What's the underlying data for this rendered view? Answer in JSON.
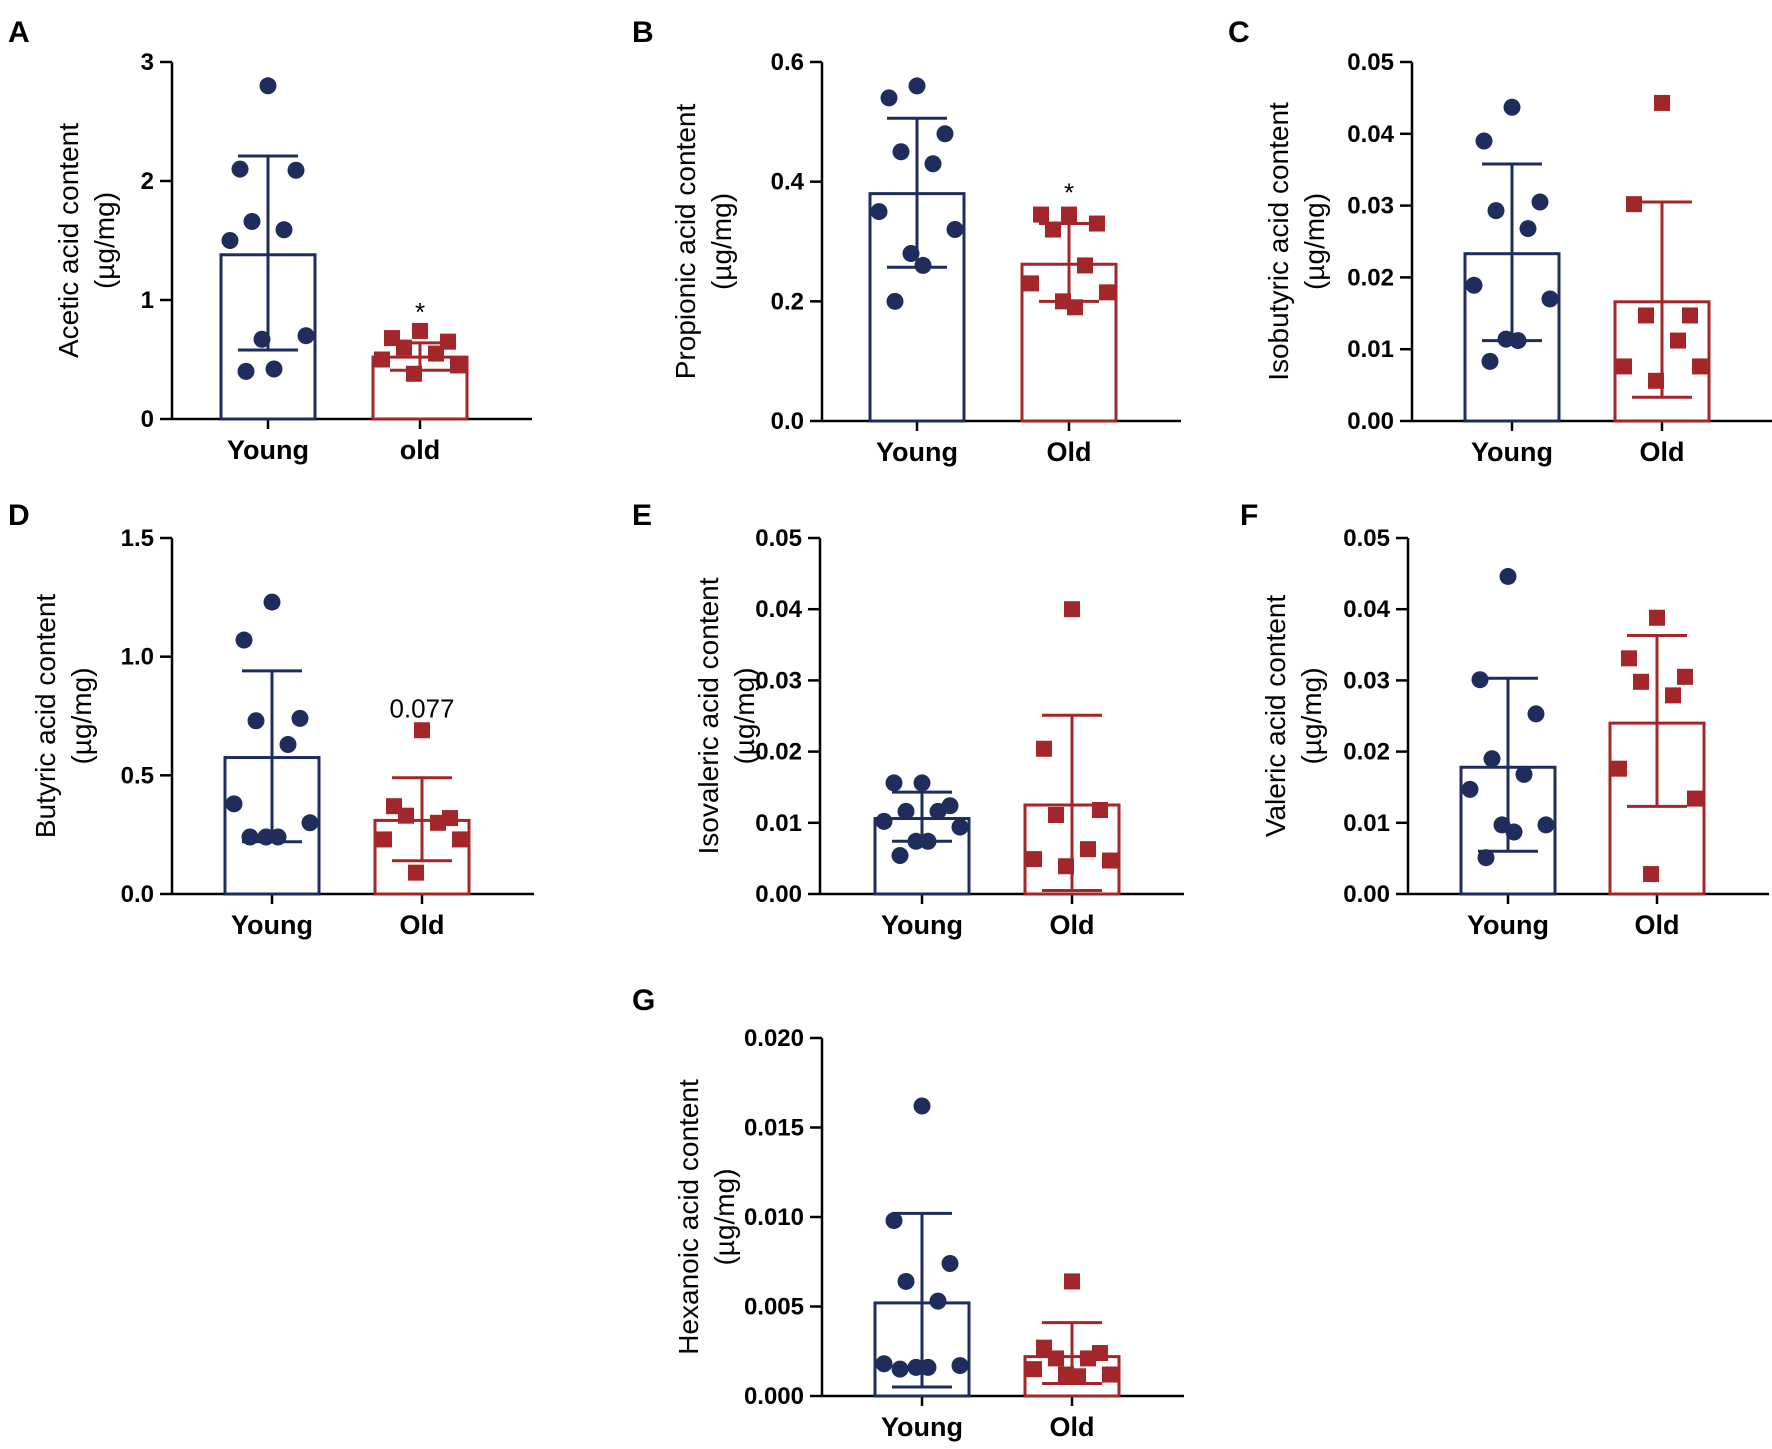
{
  "colors": {
    "young": "#1f2d5c",
    "old": "#a3262a",
    "axis": "#000000"
  },
  "chart_data": [
    {
      "panel": "A",
      "type": "bar",
      "ylabel": [
        "Acetic acid content",
        "(µg/mg)"
      ],
      "ylim": [
        0,
        3
      ],
      "ticks": [
        0,
        1,
        2,
        3
      ],
      "tick_labels": [
        "0",
        "1",
        "2",
        "3"
      ],
      "annotation": "*",
      "series": [
        {
          "name": "Young",
          "label": "Young",
          "mean": 1.38,
          "sd_low": 0.58,
          "sd_high": 2.21,
          "points": [
            2.8,
            2.1,
            2.09,
            1.66,
            1.59,
            1.5,
            0.7,
            0.67,
            0.42,
            0.4
          ]
        },
        {
          "name": "Old",
          "label": "old",
          "mean": 0.52,
          "sd_low": 0.41,
          "sd_high": 0.64,
          "points": [
            0.74,
            0.68,
            0.65,
            0.6,
            0.55,
            0.5,
            0.45,
            0.38
          ]
        }
      ]
    },
    {
      "panel": "B",
      "type": "bar",
      "ylabel": [
        "Propionic acid content",
        "(µg/mg)"
      ],
      "ylim": [
        0,
        0.6
      ],
      "ticks": [
        0,
        0.2,
        0.4,
        0.6
      ],
      "tick_labels": [
        "0.0",
        "0.2",
        "0.4",
        "0.6"
      ],
      "annotation": "*",
      "series": [
        {
          "name": "Young",
          "label": "Young",
          "mean": 0.38,
          "sd_low": 0.257,
          "sd_high": 0.506,
          "points": [
            0.56,
            0.54,
            0.48,
            0.45,
            0.43,
            0.35,
            0.32,
            0.28,
            0.26,
            0.2
          ]
        },
        {
          "name": "Old",
          "label": "Old",
          "mean": 0.262,
          "sd_low": 0.2,
          "sd_high": 0.33,
          "points": [
            0.345,
            0.345,
            0.33,
            0.32,
            0.26,
            0.23,
            0.215,
            0.2,
            0.19
          ]
        }
      ]
    },
    {
      "panel": "C",
      "type": "bar",
      "ylabel": [
        "Isobutyric acid content",
        "(µg/mg)"
      ],
      "ylim": [
        0,
        0.05
      ],
      "ticks": [
        0,
        0.01,
        0.02,
        0.03,
        0.04,
        0.05
      ],
      "tick_labels": [
        "0.00",
        "0.01",
        "0.02",
        "0.03",
        "0.04",
        "0.05"
      ],
      "annotation": "",
      "series": [
        {
          "name": "Young",
          "label": "Young",
          "mean": 0.0233,
          "sd_low": 0.0112,
          "sd_high": 0.0358,
          "points": [
            0.0437,
            0.039,
            0.0305,
            0.0293,
            0.0268,
            0.0189,
            0.017,
            0.0114,
            0.0112,
            0.0083
          ]
        },
        {
          "name": "Old",
          "label": "Old",
          "mean": 0.0166,
          "sd_low": 0.0033,
          "sd_high": 0.0305,
          "points": [
            0.0443,
            0.0302,
            0.0147,
            0.0147,
            0.0112,
            0.0076,
            0.0076,
            0.0056
          ]
        }
      ]
    },
    {
      "panel": "D",
      "type": "bar",
      "ylabel": [
        "Butyric acid content",
        "(µg/mg)"
      ],
      "ylim": [
        0,
        1.5
      ],
      "ticks": [
        0,
        0.5,
        1.0,
        1.5
      ],
      "tick_labels": [
        "0.0",
        "0.5",
        "1.0",
        "1.5"
      ],
      "annotation": "0.077",
      "series": [
        {
          "name": "Young",
          "label": "Young",
          "mean": 0.575,
          "sd_low": 0.22,
          "sd_high": 0.94,
          "points": [
            1.23,
            1.07,
            0.74,
            0.73,
            0.63,
            0.38,
            0.3,
            0.24,
            0.24,
            0.24
          ]
        },
        {
          "name": "Old",
          "label": "Old",
          "mean": 0.31,
          "sd_low": 0.14,
          "sd_high": 0.49,
          "points": [
            0.69,
            0.37,
            0.32,
            0.33,
            0.3,
            0.23,
            0.23,
            0.09
          ]
        }
      ]
    },
    {
      "panel": "E",
      "type": "bar",
      "ylabel": [
        "Isovaleric acid content",
        "(µg/mg)"
      ],
      "ylim": [
        0,
        0.05
      ],
      "ticks": [
        0,
        0.01,
        0.02,
        0.03,
        0.04,
        0.05
      ],
      "tick_labels": [
        "0.00",
        "0.01",
        "0.02",
        "0.03",
        "0.04",
        "0.05"
      ],
      "annotation": "",
      "series": [
        {
          "name": "Young",
          "label": "Young",
          "mean": 0.0106,
          "sd_low": 0.0074,
          "sd_high": 0.0143,
          "points": [
            0.0156,
            0.0156,
            0.0124,
            0.0116,
            0.0116,
            0.0102,
            0.0094,
            0.0074,
            0.0074,
            0.0054
          ]
        },
        {
          "name": "Old",
          "label": "Old",
          "mean": 0.0125,
          "sd_low": 0.0005,
          "sd_high": 0.0251,
          "points": [
            0.04,
            0.0204,
            0.0118,
            0.0111,
            0.0063,
            0.0049,
            0.0047,
            0.0039
          ]
        }
      ]
    },
    {
      "panel": "F",
      "type": "bar",
      "ylabel": [
        "Valeric acid content",
        "(µg/mg)"
      ],
      "ylim": [
        0,
        0.05
      ],
      "ticks": [
        0,
        0.01,
        0.02,
        0.03,
        0.04,
        0.05
      ],
      "tick_labels": [
        "0.00",
        "0.01",
        "0.02",
        "0.03",
        "0.04",
        "0.05"
      ],
      "annotation": "",
      "series": [
        {
          "name": "Young",
          "label": "Young",
          "mean": 0.0178,
          "sd_low": 0.006,
          "sd_high": 0.0303,
          "points": [
            0.0446,
            0.0301,
            0.0253,
            0.019,
            0.0168,
            0.0147,
            0.0097,
            0.0097,
            0.0087,
            0.0051
          ]
        },
        {
          "name": "Old",
          "label": "Old",
          "mean": 0.024,
          "sd_low": 0.0123,
          "sd_high": 0.0363,
          "points": [
            0.0388,
            0.0331,
            0.0305,
            0.0298,
            0.0279,
            0.0176,
            0.0134,
            0.0028
          ]
        }
      ]
    },
    {
      "panel": "G",
      "type": "bar",
      "ylabel": [
        "Hexanoic acid content",
        "(µg/mg)"
      ],
      "ylim": [
        0,
        0.02
      ],
      "ticks": [
        0,
        0.005,
        0.01,
        0.015,
        0.02
      ],
      "tick_labels": [
        "0.000",
        "0.005",
        "0.010",
        "0.015",
        "0.020"
      ],
      "annotation": "",
      "series": [
        {
          "name": "Young",
          "label": "Young",
          "mean": 0.0052,
          "sd_low": 0.0005,
          "sd_high": 0.0102,
          "points": [
            0.0162,
            0.0098,
            0.0074,
            0.0064,
            0.0053,
            0.0018,
            0.0017,
            0.0016,
            0.0016,
            0.0015
          ]
        },
        {
          "name": "Old",
          "label": "Old",
          "mean": 0.0022,
          "sd_low": 0.0007,
          "sd_high": 0.0041,
          "points": [
            0.0064,
            0.0027,
            0.0024,
            0.0021,
            0.0021,
            0.0015,
            0.0012,
            0.0012,
            0.0011
          ]
        }
      ]
    }
  ]
}
